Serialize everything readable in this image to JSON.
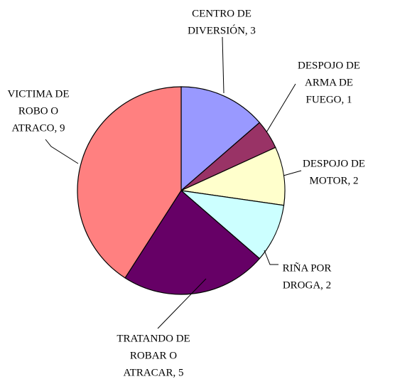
{
  "chart_data": {
    "type": "pie",
    "categories": [
      "CENTRO DE DIVERSIÓN",
      "DESPOJO DE ARMA DE FUEGO",
      "DESPOJO DE MOTOR",
      "RIÑA POR DROGA",
      "TRATANDO DE ROBAR O ATRACAR",
      "VICTIMA DE ROBO O ATRACO"
    ],
    "values": [
      3,
      1,
      2,
      2,
      5,
      9
    ],
    "value_labels": [
      [
        "CENTRO DE",
        "DIVERSIÓN, 3"
      ],
      [
        "DESPOJO DE",
        "ARMA DE",
        "FUEGO, 1"
      ],
      [
        "DESPOJO DE",
        "MOTOR, 2"
      ],
      [
        "RIÑA POR",
        "DROGA, 2"
      ],
      [
        "TRATANDO DE",
        "ROBAR O",
        "ATRACAR, 5"
      ],
      [
        "VICTIMA DE",
        "ROBO O",
        "ATRACO, 9"
      ]
    ],
    "colors": [
      "#9999ff",
      "#993366",
      "#ffffcc",
      "#ccffff",
      "#660066",
      "#ff8080"
    ]
  }
}
